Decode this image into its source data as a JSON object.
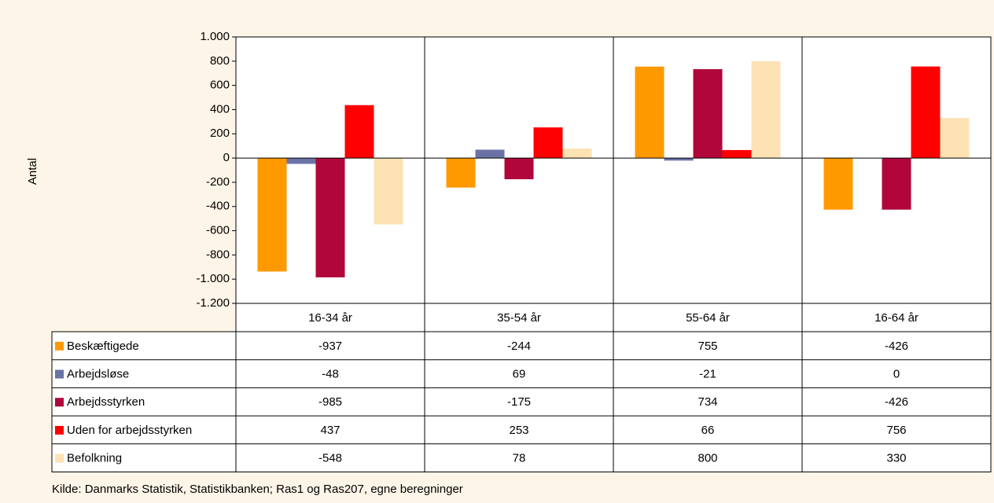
{
  "chart_data": {
    "type": "bar",
    "y_label": "Antal",
    "source": "Kilde: Danmarks Statistik, Statistikbanken; Ras1 og Ras207, egne beregninger",
    "categories": [
      "16-34 år",
      "35-54 år",
      "55-64 år",
      "16-64 år"
    ],
    "series": [
      {
        "name": "Beskæftigede",
        "color": "#ff9900",
        "values": [
          -937,
          -244,
          755,
          -426
        ]
      },
      {
        "name": "Arbejdsløse",
        "color": "#6b73a6",
        "values": [
          -48,
          69,
          -21,
          0
        ]
      },
      {
        "name": "Arbejdsstyrken",
        "color": "#b0063a",
        "values": [
          -985,
          -175,
          734,
          -426
        ]
      },
      {
        "name": "Uden for arbejdsstyrken",
        "color": "#ff0000",
        "values": [
          437,
          253,
          66,
          756
        ]
      },
      {
        "name": "Befolkning",
        "color": "#fde2b4",
        "values": [
          -548,
          78,
          800,
          330
        ]
      }
    ],
    "ylim": [
      -1200,
      1000
    ],
    "yticks": [
      {
        "value": -1200,
        "label": "-1.200"
      },
      {
        "value": -1000,
        "label": "-1.000"
      },
      -800,
      -600,
      -400,
      -200,
      0,
      200,
      400,
      600,
      800,
      {
        "value": 1000,
        "label": "1.000"
      }
    ]
  }
}
